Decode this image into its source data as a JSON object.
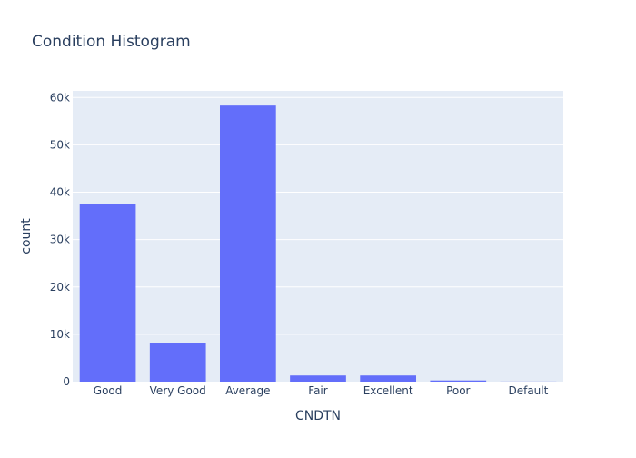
{
  "chart_data": {
    "type": "bar",
    "title": "Condition Histogram",
    "xlabel": "CNDTN",
    "ylabel": "count",
    "categories": [
      "Good",
      "Very Good",
      "Average",
      "Fair",
      "Excellent",
      "Poor",
      "Default"
    ],
    "values": [
      37500,
      8200,
      58300,
      1300,
      1300,
      250,
      20
    ],
    "ylim": [
      0,
      61400
    ],
    "yticks": [
      0,
      10000,
      20000,
      30000,
      40000,
      50000,
      60000
    ],
    "ytick_labels": [
      "0",
      "10k",
      "20k",
      "30k",
      "40k",
      "50k",
      "60k"
    ],
    "grid": true,
    "colors": {
      "bar": "#636efa",
      "plot_bg": "#e5ecf6",
      "grid": "#ffffff",
      "text": "#2a3f5f"
    }
  }
}
